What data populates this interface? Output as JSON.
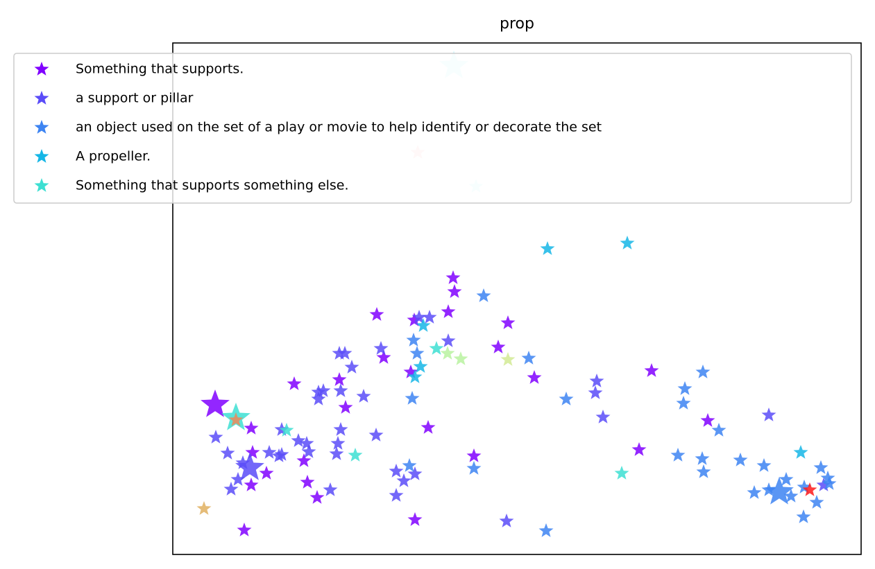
{
  "chart_data": {
    "type": "scatter",
    "title": "prop",
    "xlim": [
      0,
      992
    ],
    "ylim": [
      0,
      738
    ],
    "legend": "upper left",
    "series": [
      {
        "name": "Something that supports.",
        "color": "#8000ff",
        "x": [
          404,
          406,
          397,
          294,
          483,
          469,
          304,
          343,
          240,
          175,
          249,
          521,
          690,
          771,
          368,
          113,
          115,
          189,
          135,
          194,
          113,
          208,
          434,
          672,
          349,
          103,
          348
        ],
        "y": [
          399,
          379,
          350,
          346,
          334,
          299,
          284,
          263,
          252,
          246,
          212,
          255,
          265,
          193,
          183,
          182,
          147,
          135,
          117,
          104,
          100,
          82,
          142,
          151,
          50,
          35,
          338
        ]
      },
      {
        "name": "a support or pillar",
        "color": "#5a4cf8",
        "x": [
          210,
          217,
          210,
          275,
          240,
          248,
          258,
          300,
          242,
          370,
          355,
          397,
          611,
          609,
          620,
          859,
          293,
          242,
          238,
          236,
          181,
          193,
          196,
          153,
          157,
          139,
          79,
          62,
          101,
          94,
          84,
          227,
          322,
          333,
          349,
          322,
          481,
          938,
          157
        ],
        "y": [
          234,
          236,
          224,
          228,
          290,
          290,
          270,
          297,
          236,
          342,
          342,
          308,
          250,
          233,
          198,
          201,
          172,
          180,
          160,
          145,
          164,
          160,
          148,
          142,
          144,
          147,
          146,
          169,
          132,
          108,
          94,
          93,
          120,
          106,
          116,
          85,
          48,
          100,
          180
        ]
      },
      {
        "name": "an object used on the set of a play or movie to help identify or decorate the set",
        "color": "#3d84f2",
        "x": [
          448,
          513,
          567,
          352,
          347,
          345,
          738,
          764,
          736,
          787,
          728,
          763,
          765,
          818,
          852,
          884,
          838,
          859,
          891,
          910,
          928,
          934,
          944,
          946,
          434,
          341,
          538,
          909
        ],
        "y": [
          373,
          283,
          224,
          290,
          309,
          225,
          239,
          263,
          218,
          179,
          143,
          138,
          119,
          136,
          128,
          108,
          89,
          93,
          84,
          97,
          75,
          125,
          110,
          102,
          124,
          128,
          34,
          54
        ]
      },
      {
        "name": "A propeller.",
        "color": "#15b6e6",
        "x": [
          540,
          655,
          361,
          357,
          349,
          905
        ],
        "y": [
          441,
          449,
          330,
          271,
          256,
          147
        ]
      },
      {
        "name": "Something that supports something else.",
        "color": "#3ddfd2",
        "x": [
          164,
          263,
          647,
          380
        ],
        "y": [
          179,
          143,
          117,
          297
        ]
      },
      {
        "color": "#8000ff",
        "x": [
          61
        ],
        "y": [
          216
        ],
        "size": 2
      },
      {
        "color": "#5a4cf8",
        "x": [
          111
        ],
        "y": [
          125
        ],
        "size": 2
      },
      {
        "color": "#3d84f2",
        "x": [
          874
        ],
        "y": [
          90
        ],
        "size": 2
      },
      {
        "color": "#3ddfd2",
        "x": [
          91
        ],
        "y": [
          197
        ],
        "size": 2
      },
      {
        "color": "#b9f2a0",
        "x": [
          396,
          415
        ],
        "y": [
          290,
          282
        ]
      },
      {
        "color": "#d2ea94",
        "x": [
          483
        ],
        "y": [
          281
        ]
      },
      {
        "color": "#ef8758",
        "x": [
          91
        ],
        "y": [
          194
        ]
      },
      {
        "color": "#e0b060",
        "x": [
          45
        ],
        "y": [
          66
        ]
      },
      {
        "color": "#ff1a1a",
        "x": [
          918
        ],
        "y": [
          93
        ]
      },
      {
        "color": "#ffb8b8",
        "x": [
          353
        ],
        "y": [
          580
        ],
        "alpha": 0.5
      },
      {
        "color": "#b0f0f8",
        "x": [
          437
        ],
        "y": [
          531
        ],
        "alpha": 0.5
      },
      {
        "color": "#b0f0f8",
        "x": [
          405
        ],
        "y": [
          705
        ],
        "size": 2,
        "alpha": 0.5
      }
    ]
  }
}
